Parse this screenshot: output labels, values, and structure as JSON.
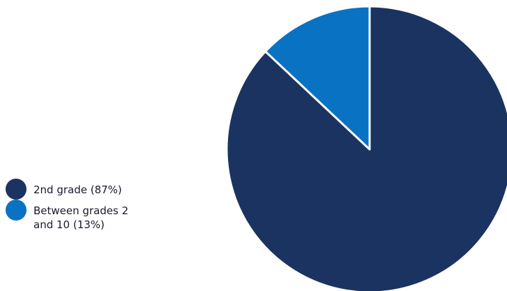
{
  "chart_data": {
    "type": "pie",
    "categories": [
      "2nd grade (87%)",
      "Between grades 2\nand 10 (13%)"
    ],
    "values": [
      87,
      13
    ],
    "colors": [
      "#1b3361",
      "#0a72c2"
    ],
    "title": "",
    "legend_position": "left"
  }
}
